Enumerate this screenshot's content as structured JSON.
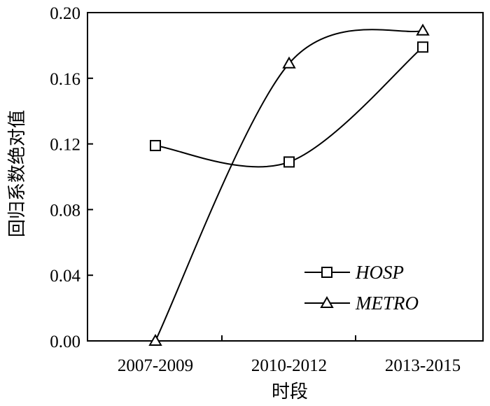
{
  "chart_data": {
    "type": "line",
    "categories": [
      "2007-2009",
      "2010-2012",
      "2013-2015"
    ],
    "xlabel": "时段",
    "ylabel": "回归系数绝对值",
    "ylim": [
      0.0,
      0.2
    ],
    "yticks": [
      "0.00",
      "0.04",
      "0.08",
      "0.12",
      "0.16",
      "0.20"
    ],
    "grid": false,
    "legend_position": "bottom-right",
    "series": [
      {
        "name": "HOSP",
        "marker": "square",
        "values": [
          0.119,
          0.109,
          0.179
        ]
      },
      {
        "name": "METRO",
        "marker": "triangle",
        "values": [
          0.0,
          0.169,
          0.189
        ]
      }
    ]
  }
}
